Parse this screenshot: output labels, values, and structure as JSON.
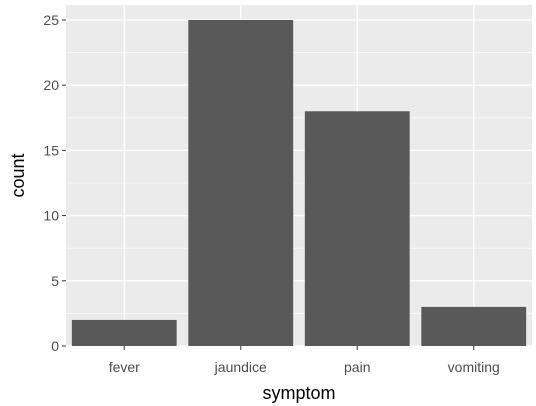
{
  "chart_data": {
    "type": "bar",
    "title": "",
    "xlabel": "symptom",
    "ylabel": "count",
    "categories": [
      "fever",
      "jaundice",
      "pain",
      "vomiting"
    ],
    "values": [
      2,
      25,
      18,
      3
    ],
    "ylim": [
      0,
      26.15
    ],
    "yticks": [
      0,
      5,
      10,
      15,
      20,
      25
    ],
    "grid": true,
    "legend": "none",
    "colors": {
      "bar": "#595959",
      "panel": "#ebebeb",
      "grid": "#ffffff",
      "tick_text": "#4d4d4d",
      "tick_mark": "#333333"
    }
  }
}
